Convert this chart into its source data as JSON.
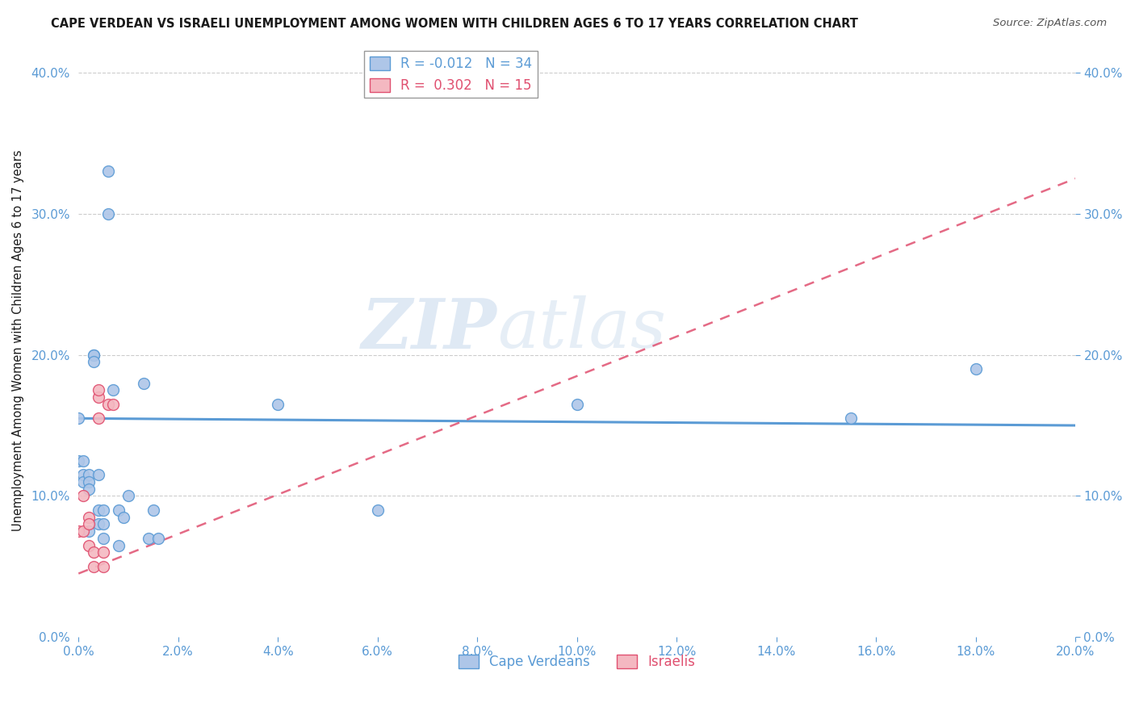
{
  "title": "CAPE VERDEAN VS ISRAELI UNEMPLOYMENT AMONG WOMEN WITH CHILDREN AGES 6 TO 17 YEARS CORRELATION CHART",
  "source": "Source: ZipAtlas.com",
  "ylabel": "Unemployment Among Women with Children Ages 6 to 17 years",
  "xlim": [
    0.0,
    0.2
  ],
  "ylim": [
    0.0,
    0.42
  ],
  "xticks": [
    0.0,
    0.02,
    0.04,
    0.06,
    0.08,
    0.1,
    0.12,
    0.14,
    0.16,
    0.18,
    0.2
  ],
  "yticks": [
    0.0,
    0.1,
    0.2,
    0.3,
    0.4
  ],
  "xtick_labels": [
    "0.0%",
    "2.0%",
    "4.0%",
    "6.0%",
    "8.0%",
    "10.0%",
    "12.0%",
    "14.0%",
    "16.0%",
    "18.0%",
    "20.0%"
  ],
  "ytick_labels": [
    "0.0%",
    "10.0%",
    "20.0%",
    "30.0%",
    "40.0%"
  ],
  "cv_color": "#aec6e8",
  "cv_edge_color": "#5b9bd5",
  "is_color": "#f4b8c1",
  "is_edge_color": "#e05070",
  "marker_size": 100,
  "cv_R": -0.012,
  "cv_N": 34,
  "is_R": 0.302,
  "is_N": 15,
  "watermark_zip": "ZIP",
  "watermark_atlas": "atlas",
  "background_color": "#ffffff",
  "grid_color": "#cccccc",
  "cape_verdean_x": [
    0.0,
    0.0,
    0.001,
    0.001,
    0.001,
    0.002,
    0.002,
    0.002,
    0.002,
    0.003,
    0.003,
    0.003,
    0.004,
    0.004,
    0.004,
    0.005,
    0.005,
    0.005,
    0.006,
    0.006,
    0.007,
    0.008,
    0.008,
    0.009,
    0.01,
    0.013,
    0.014,
    0.015,
    0.016,
    0.04,
    0.06,
    0.1,
    0.155,
    0.18
  ],
  "cape_verdean_y": [
    0.155,
    0.125,
    0.125,
    0.115,
    0.11,
    0.115,
    0.11,
    0.105,
    0.075,
    0.2,
    0.2,
    0.195,
    0.115,
    0.09,
    0.08,
    0.09,
    0.08,
    0.07,
    0.33,
    0.3,
    0.175,
    0.09,
    0.065,
    0.085,
    0.1,
    0.18,
    0.07,
    0.09,
    0.07,
    0.165,
    0.09,
    0.165,
    0.155,
    0.19
  ],
  "israeli_x": [
    0.0,
    0.001,
    0.001,
    0.002,
    0.002,
    0.002,
    0.003,
    0.003,
    0.004,
    0.004,
    0.004,
    0.005,
    0.005,
    0.006,
    0.007
  ],
  "israeli_y": [
    0.075,
    0.075,
    0.1,
    0.085,
    0.08,
    0.065,
    0.06,
    0.05,
    0.155,
    0.17,
    0.175,
    0.06,
    0.05,
    0.165,
    0.165
  ],
  "cv_trend_x": [
    0.0,
    0.2
  ],
  "cv_trend_y": [
    0.155,
    0.15
  ],
  "is_trend_x": [
    0.0,
    0.2
  ],
  "is_trend_y": [
    0.045,
    0.325
  ]
}
